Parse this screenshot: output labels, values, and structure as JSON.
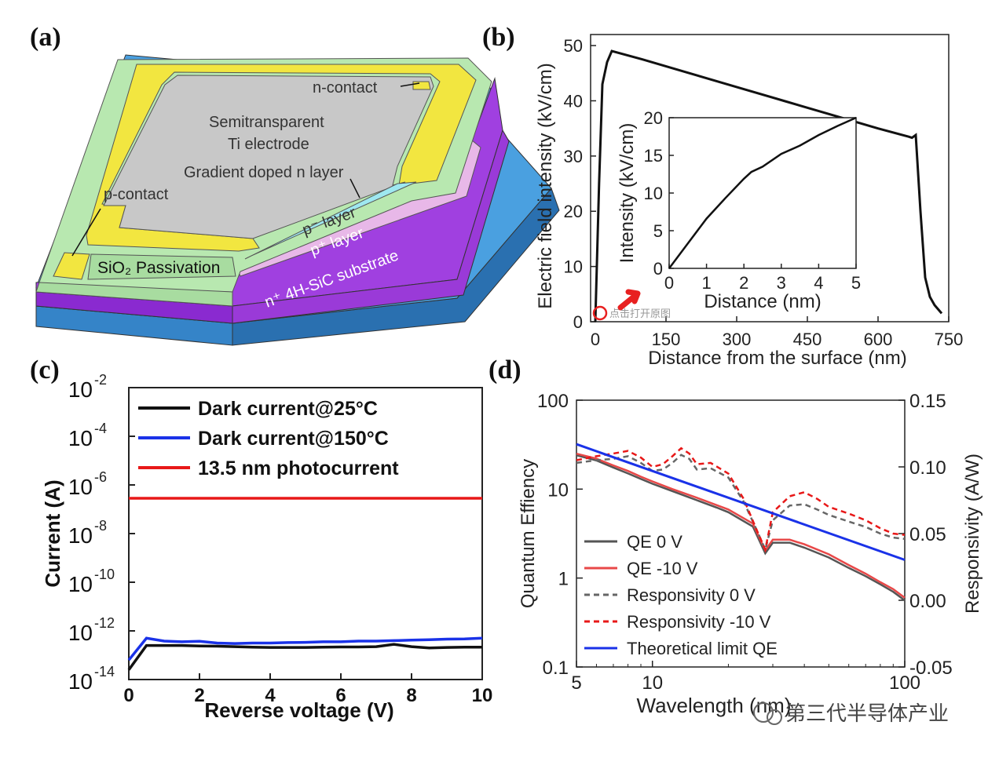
{
  "figure": {
    "panel_labels": [
      "(a)",
      "(b)",
      "(c)",
      "(d)"
    ],
    "watermark": "第三代半导体产业",
    "overlay_hint": "点击打开原图"
  },
  "device": {
    "labels": {
      "n_contact": "n-contact",
      "semitransparent": "Semitransparent",
      "ti_electrode": "Ti electrode",
      "gradient": "Gradient doped n layer",
      "p_contact": "p-contact",
      "p_minus_layer": "p⁻ layer",
      "p_plus_layer": "p⁺ layer",
      "substrate": "n⁺ 4H-SiC substrate",
      "sio2": "SiO₂ Passivation"
    },
    "colors": {
      "passivation": "#b8e8b0",
      "gold": "#f2e640",
      "electrode": "#c8c8c8",
      "p_minus": "#e8b8e8",
      "p_plus": "#9a3ad8",
      "substrate": "#3b8ed0"
    }
  },
  "chart_data": [
    {
      "panel": "(b)",
      "type": "line",
      "xlabel": "Distance from the surface (nm)",
      "ylabel": "Electric field intensity (kV/cm)",
      "xlim": [
        -10,
        750
      ],
      "ylim": [
        0,
        52
      ],
      "xticks": [
        0,
        150,
        300,
        450,
        600,
        750
      ],
      "yticks": [
        0,
        10,
        20,
        30,
        40,
        50
      ],
      "color": "#111111",
      "x": [
        0,
        8,
        15,
        25,
        35,
        100,
        200,
        300,
        400,
        500,
        600,
        665,
        672,
        680,
        690,
        700,
        710,
        720,
        730,
        735
      ],
      "y": [
        0,
        25,
        43,
        47,
        49,
        47.5,
        45,
        42.5,
        40,
        37.5,
        35,
        33.5,
        33.3,
        33.8,
        20,
        8,
        4.5,
        3,
        2,
        1.5
      ],
      "inset": {
        "type": "line",
        "xlabel": "Distance (nm)",
        "ylabel": "Intensity (kV/cm)",
        "xlim": [
          0,
          5
        ],
        "ylim": [
          0,
          20
        ],
        "xticks": [
          0,
          1,
          2,
          3,
          4,
          5
        ],
        "yticks": [
          0,
          5,
          10,
          15,
          20
        ],
        "x": [
          0,
          0.5,
          1,
          1.5,
          2,
          2.2,
          2.5,
          3,
          3.5,
          4,
          4.5,
          5
        ],
        "y": [
          0,
          3.3,
          6.6,
          9.3,
          11.9,
          12.8,
          13.5,
          15.2,
          16.3,
          17.7,
          18.9,
          20
        ]
      }
    },
    {
      "panel": "(c)",
      "type": "line",
      "xlabel": "Reverse voltage (V)",
      "ylabel": "Current (A)",
      "yscale": "log",
      "xlim": [
        0,
        10
      ],
      "ylim_exp": [
        -14,
        -2
      ],
      "xticks": [
        "0",
        "2",
        "4",
        "6",
        "8",
        "10"
      ],
      "ytick_exps": [
        "-2",
        "-4",
        "-6",
        "-8",
        "-10",
        "-12",
        "-14"
      ],
      "ytick_base": "10",
      "legend": "top-left",
      "x": [
        0,
        0.5,
        1,
        1.5,
        2,
        2.5,
        3,
        3.5,
        4,
        4.5,
        5,
        5.5,
        6,
        6.5,
        7,
        7.5,
        8,
        8.5,
        9,
        9.5,
        10
      ],
      "series": [
        {
          "name": "Dark current@25°C",
          "color": "#111111",
          "log_values": [
            -13.6,
            -12.6,
            -12.6,
            -12.6,
            -12.62,
            -12.63,
            -12.65,
            -12.67,
            -12.68,
            -12.68,
            -12.68,
            -12.67,
            -12.66,
            -12.66,
            -12.65,
            -12.55,
            -12.65,
            -12.7,
            -12.68,
            -12.67,
            -12.67
          ]
        },
        {
          "name": "Dark current@150°C",
          "color": "#1a32e8",
          "log_values": [
            -13.2,
            -12.3,
            -12.42,
            -12.45,
            -12.43,
            -12.5,
            -12.52,
            -12.5,
            -12.5,
            -12.48,
            -12.47,
            -12.45,
            -12.45,
            -12.42,
            -12.42,
            -12.4,
            -12.38,
            -12.36,
            -12.34,
            -12.33,
            -12.3
          ]
        },
        {
          "name": "13.5 nm photocurrent",
          "color": "#e81818",
          "log_values": [
            -6.55,
            -6.55,
            -6.55,
            -6.55,
            -6.55,
            -6.55,
            -6.55,
            -6.55,
            -6.55,
            -6.55,
            -6.55,
            -6.55,
            -6.55,
            -6.55,
            -6.55,
            -6.55,
            -6.55,
            -6.55,
            -6.55,
            -6.55,
            -6.55
          ]
        }
      ]
    },
    {
      "panel": "(d)",
      "type": "line",
      "xlabel": "Wavelength (nm)",
      "ylabel_left": "Quantum Effiency",
      "ylabel_right": "Responsivity (A/W)",
      "xscale": "log",
      "yscale_left": "log",
      "xlim": [
        5,
        100
      ],
      "ylim_left": [
        0.1,
        100
      ],
      "ylim_right": [
        -0.05,
        0.15
      ],
      "xticks": [
        "5",
        "10",
        "100"
      ],
      "yticks_left": [
        "100",
        "10",
        "1",
        "0.1"
      ],
      "yticks_right": [
        "0.15",
        "0.10",
        "0.05",
        "0.00",
        "-0.05"
      ],
      "legend": "bottom-left",
      "series": [
        {
          "name": "QE 0 V",
          "axis": "left",
          "style": "solid",
          "color": "#555555",
          "x": [
            5,
            6,
            7,
            8,
            9,
            10,
            12,
            15,
            18,
            20,
            25,
            28,
            30,
            35,
            40,
            50,
            60,
            70,
            80,
            90,
            100
          ],
          "y": [
            24,
            21,
            17.5,
            15,
            13,
            11.5,
            9.5,
            7.5,
            6.2,
            5.5,
            3.8,
            1.9,
            2.5,
            2.5,
            2.2,
            1.7,
            1.3,
            1.05,
            0.85,
            0.7,
            0.56
          ]
        },
        {
          "name": "QE -10 V",
          "axis": "left",
          "style": "solid",
          "color": "#e84848",
          "x": [
            5,
            6,
            7,
            8,
            9,
            10,
            12,
            15,
            18,
            20,
            25,
            28,
            30,
            35,
            40,
            50,
            60,
            70,
            80,
            90,
            100
          ],
          "y": [
            25,
            22,
            18.5,
            16,
            13.8,
            12.2,
            10,
            8,
            6.6,
            5.9,
            4.1,
            2.05,
            2.7,
            2.7,
            2.4,
            1.85,
            1.4,
            1.12,
            0.9,
            0.75,
            0.6
          ]
        },
        {
          "name": "Responsivity 0 V",
          "axis": "right",
          "style": "dashed",
          "color": "#666666",
          "x": [
            5,
            6,
            7,
            8,
            9,
            10,
            11,
            12,
            13,
            14,
            15,
            17,
            20,
            23,
            26,
            28,
            30,
            35,
            40,
            45,
            50,
            60,
            70,
            80,
            90,
            100
          ],
          "y": [
            0.103,
            0.105,
            0.106,
            0.108,
            0.103,
            0.097,
            0.098,
            0.103,
            0.109,
            0.106,
            0.098,
            0.099,
            0.092,
            0.074,
            0.052,
            0.038,
            0.06,
            0.071,
            0.072,
            0.068,
            0.064,
            0.059,
            0.055,
            0.05,
            0.047,
            0.046
          ]
        },
        {
          "name": "Responsivity -10 V",
          "axis": "right",
          "style": "dashed",
          "color": "#e81818",
          "x": [
            5,
            6,
            7,
            8,
            9,
            10,
            11,
            12,
            13,
            14,
            15,
            17,
            20,
            23,
            26,
            28,
            30,
            35,
            40,
            45,
            50,
            60,
            70,
            80,
            90,
            100
          ],
          "y": [
            0.105,
            0.108,
            0.11,
            0.112,
            0.107,
            0.1,
            0.102,
            0.108,
            0.114,
            0.11,
            0.102,
            0.103,
            0.095,
            0.076,
            0.052,
            0.038,
            0.066,
            0.078,
            0.081,
            0.076,
            0.07,
            0.065,
            0.06,
            0.054,
            0.05,
            0.049
          ]
        },
        {
          "name": "Theoretical limit QE",
          "axis": "left",
          "style": "solid",
          "color": "#1a32e8",
          "x": [
            5,
            100
          ],
          "y": [
            32,
            1.6
          ]
        }
      ]
    }
  ]
}
